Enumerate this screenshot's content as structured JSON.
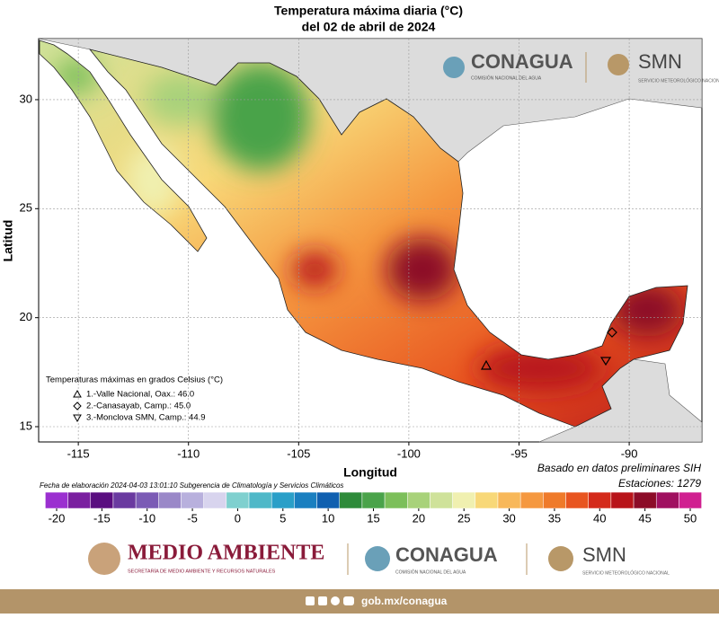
{
  "title": "Temperatura máxima diaria (°C)",
  "subtitle": "del 02 de abril de 2024",
  "axes": {
    "x_label": "Longitud",
    "y_label": "Latitud",
    "xlim": [
      -116.8,
      -86.7
    ],
    "ylim": [
      14.3,
      32.8
    ],
    "xticks": [
      -115,
      -110,
      -105,
      -100,
      -95,
      -90
    ],
    "yticks": [
      15,
      20,
      25,
      30
    ],
    "grid": true
  },
  "legend": {
    "title": "Temperaturas máximas en grados Celsius (°C)",
    "items": [
      "1.-Valle Nacional, Oax.: 46.0",
      "2.-Canasayab, Camp.: 45.0",
      "3.-Monclova SMN, Camp.: 44.9"
    ]
  },
  "note": "Basado en datos preliminares SIH",
  "stations": "Estaciones:  1279",
  "credit": "Fecha de elaboración 2024-04-03 13:01:10 Subgerencia de Climatología y Servicios Climáticos",
  "colorbar": {
    "ticks": [
      -20,
      -15,
      -10,
      -5,
      0,
      5,
      10,
      15,
      20,
      25,
      30,
      35,
      40,
      45,
      50
    ],
    "colors": [
      "#9b30d0",
      "#7a1fa0",
      "#5a0e80",
      "#6a3aa0",
      "#7b5bb5",
      "#9a88c8",
      "#b8b0dd",
      "#d8d4ee",
      "#7fd0cf",
      "#4fb8c8",
      "#2a9fc8",
      "#1a7fc0",
      "#1060b0",
      "#2e8b3a",
      "#4aa34a",
      "#7cbf5a",
      "#a8d27a",
      "#cfe29a",
      "#f0f0b0",
      "#f8d878",
      "#f8b85a",
      "#f59840",
      "#ef7a2a",
      "#e85520",
      "#d42a1a",
      "#b8141a",
      "#8c0c28",
      "#a01060",
      "#d02090"
    ]
  },
  "logos": {
    "conagua": "CONAGUA",
    "conagua_sub": "COMISIÓN NACIONAL DEL AGUA",
    "smn": "SMN",
    "smn_sub": "SERVICIO METEOROLÓGICO NACIONAL",
    "medio": "MEDIO AMBIENTE",
    "medio_sub": "SECRETARÍA DE MEDIO AMBIENTE Y RECURSOS NATURALES"
  },
  "footer": "gob.mx/conagua"
}
